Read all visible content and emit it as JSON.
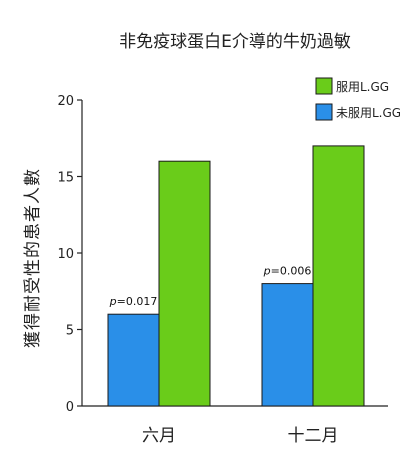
{
  "chart_data": {
    "type": "bar",
    "title": "非免疫球蛋白E介導的牛奶過敏",
    "xlabel": "",
    "ylabel": "獲得耐受性的患者人數",
    "ylim": [
      0,
      20
    ],
    "yticks": [
      0,
      5,
      10,
      15,
      20
    ],
    "categories": [
      "六月",
      "十二月"
    ],
    "series": [
      {
        "name": "未服用L.GG",
        "color": "#2a8fe8",
        "values": [
          6,
          8
        ]
      },
      {
        "name": "服用L.GG",
        "color": "#6acc1a",
        "values": [
          16,
          17
        ]
      }
    ],
    "annotations": [
      {
        "category": "六月",
        "p_label": "p",
        "p_value": "=0.017"
      },
      {
        "category": "十二月",
        "p_label": "p",
        "p_value": "=0.006"
      }
    ],
    "legend_position": "top-right",
    "grid": false
  }
}
